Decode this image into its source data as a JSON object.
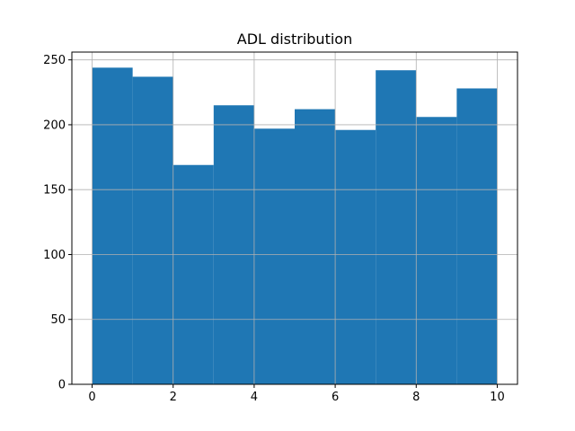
{
  "chart_data": {
    "type": "bar",
    "title": "ADL distribution",
    "xlabel": "",
    "ylabel": "",
    "bins": [
      {
        "x0": 0,
        "x1": 1,
        "count": 244
      },
      {
        "x0": 1,
        "x1": 2,
        "count": 237
      },
      {
        "x0": 2,
        "x1": 3,
        "count": 169
      },
      {
        "x0": 3,
        "x1": 4,
        "count": 215
      },
      {
        "x0": 4,
        "x1": 5,
        "count": 197
      },
      {
        "x0": 5,
        "x1": 6,
        "count": 212
      },
      {
        "x0": 6,
        "x1": 7,
        "count": 196
      },
      {
        "x0": 7,
        "x1": 8,
        "count": 242
      },
      {
        "x0": 8,
        "x1": 9,
        "count": 206
      },
      {
        "x0": 9,
        "x1": 10,
        "count": 228
      }
    ],
    "xlim": [
      -0.5,
      10.5
    ],
    "ylim": [
      0,
      256
    ],
    "xticks": [
      0,
      2,
      4,
      6,
      8,
      10
    ],
    "yticks": [
      0,
      50,
      100,
      150,
      200,
      250
    ],
    "grid": true,
    "bar_color": "#1f77b4",
    "grid_color": "#b0b0b0"
  }
}
